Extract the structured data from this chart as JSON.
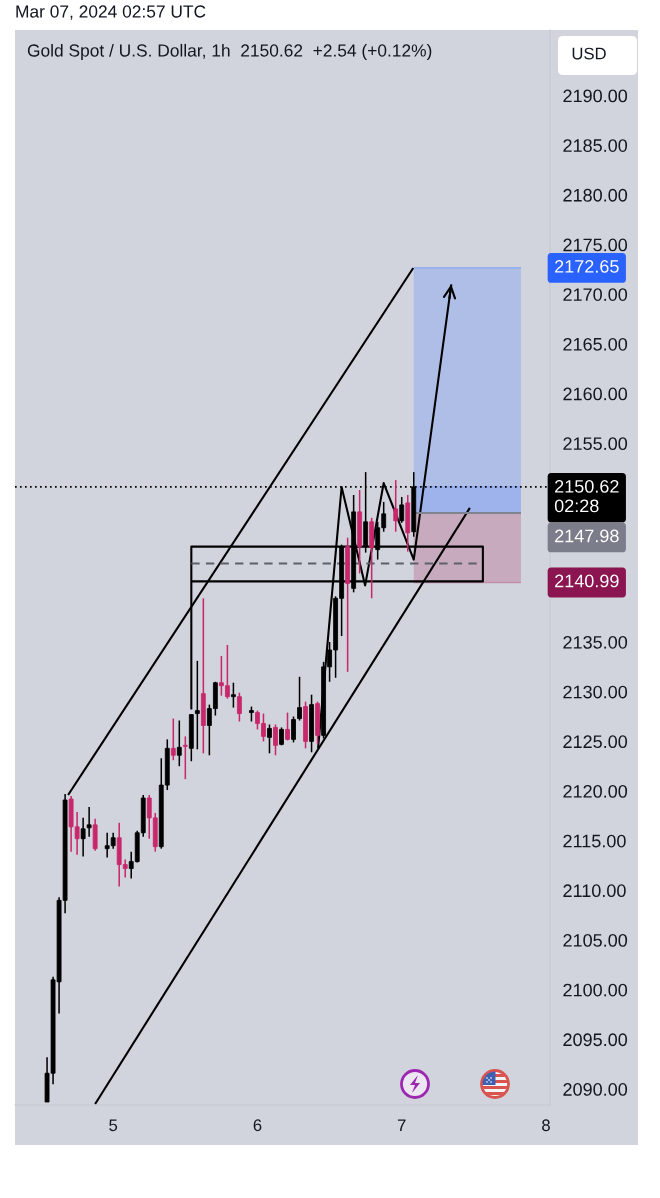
{
  "chart_data": {
    "type": "candlestick",
    "title": "Gold Spot / U.S. Dollar, 1h  2150.62  +2.54 (+0.12%)",
    "annotations": [
      "Mar 07, 2024 02:57 UTC",
      "USD"
    ],
    "x": [
      "2024-03-04T13:00",
      "2024-03-04T14:00",
      "2024-03-04T15:00",
      "2024-03-04T16:00",
      "2024-03-04T17:00",
      "2024-03-04T18:00",
      "2024-03-04T19:00",
      "2024-03-04T20:00",
      "2024-03-04T21:00",
      "2024-03-04T23:00",
      "2024-03-05T00:00",
      "2024-03-05T01:00",
      "2024-03-05T02:00",
      "2024-03-05T03:00",
      "2024-03-05T04:00",
      "2024-03-05T05:00",
      "2024-03-05T06:00",
      "2024-03-05T07:00",
      "2024-03-05T08:00",
      "2024-03-05T09:00",
      "2024-03-05T10:00",
      "2024-03-05T11:00",
      "2024-03-05T12:00",
      "2024-03-05T13:00",
      "2024-03-05T14:00",
      "2024-03-05T15:00",
      "2024-03-05T16:00",
      "2024-03-05T17:00",
      "2024-03-05T18:00",
      "2024-03-05T19:00",
      "2024-03-05T20:00",
      "2024-03-05T21:00",
      "2024-03-05T23:00",
      "2024-03-06T00:00",
      "2024-03-06T01:00",
      "2024-03-06T02:00",
      "2024-03-06T03:00",
      "2024-03-06T04:00",
      "2024-03-06T05:00",
      "2024-03-06T06:00",
      "2024-03-06T07:00",
      "2024-03-06T08:00",
      "2024-03-06T09:00",
      "2024-03-06T10:00",
      "2024-03-06T11:00",
      "2024-03-06T12:00",
      "2024-03-06T13:00",
      "2024-03-06T14:00",
      "2024-03-06T15:00",
      "2024-03-06T16:00",
      "2024-03-06T17:00",
      "2024-03-06T18:00",
      "2024-03-06T19:00",
      "2024-03-06T20:00",
      "2024-03-06T21:00",
      "2024-03-06T23:00",
      "2024-03-07T00:00",
      "2024-03-07T01:00",
      "2024-03-07T02:00"
    ],
    "ohlc": [
      [
        2088.7,
        2093.2,
        2088.7,
        2091.6
      ],
      [
        2091.6,
        2101.3,
        2090.5,
        2101.0
      ],
      [
        2100.8,
        2109.3,
        2097.6,
        2109.0
      ],
      [
        2109.0,
        2119.7,
        2107.7,
        2119.1
      ],
      [
        2119.2,
        2119.5,
        2113.9,
        2116.4
      ],
      [
        2116.4,
        2117.9,
        2113.6,
        2115.2
      ],
      [
        2115.2,
        2117.3,
        2113.4,
        2116.2
      ],
      [
        2116.3,
        2118.4,
        2115.4,
        2116.6
      ],
      [
        2116.6,
        2117.2,
        2114.0,
        2114.2
      ],
      [
        2114.2,
        2115.8,
        2113.3,
        2114.5
      ],
      [
        2114.5,
        2115.8,
        2114.2,
        2115.3
      ],
      [
        2115.3,
        2116.8,
        2110.4,
        2112.6
      ],
      [
        2112.6,
        2113.1,
        2111.3,
        2112.2
      ],
      [
        2112.2,
        2113.9,
        2111.2,
        2112.9
      ],
      [
        2112.9,
        2116.0,
        2112.8,
        2115.8
      ],
      [
        2115.8,
        2119.6,
        2115.4,
        2119.3
      ],
      [
        2119.3,
        2119.6,
        2115.2,
        2117.3
      ],
      [
        2117.3,
        2117.8,
        2113.9,
        2114.4
      ],
      [
        2114.4,
        2123.3,
        2114.2,
        2120.6
      ],
      [
        2120.6,
        2125.2,
        2120.1,
        2124.3
      ],
      [
        2124.3,
        2127.3,
        2123.1,
        2123.6
      ],
      [
        2123.6,
        2127.1,
        2122.5,
        2124.4
      ],
      [
        2124.6,
        2125.5,
        2121.2,
        2124.5
      ],
      [
        2124.3,
        2127.7,
        2123.0,
        2127.7
      ],
      [
        2127.8,
        2133.1,
        2124.2,
        2128.1
      ],
      [
        2129.8,
        2139.4,
        2123.8,
        2126.6
      ],
      [
        2126.6,
        2128.7,
        2123.6,
        2128.3
      ],
      [
        2128.3,
        2131.0,
        2127.6,
        2130.9
      ],
      [
        2130.9,
        2133.6,
        2129.6,
        2130.6
      ],
      [
        2130.6,
        2134.7,
        2129.3,
        2129.5
      ],
      [
        2129.5,
        2130.9,
        2128.4,
        2129.7
      ],
      [
        2129.5,
        2129.9,
        2127.0,
        2127.8
      ],
      [
        2127.9,
        2128.5,
        2127.0,
        2128.1
      ],
      [
        2127.9,
        2128.1,
        2126.2,
        2126.8
      ],
      [
        2126.8,
        2127.8,
        2125.0,
        2125.5
      ],
      [
        2125.4,
        2126.7,
        2123.8,
        2126.3
      ],
      [
        2126.4,
        2126.7,
        2123.6,
        2124.6
      ],
      [
        2124.7,
        2126.4,
        2124.6,
        2126.2
      ],
      [
        2126.2,
        2127.9,
        2125.1,
        2125.2
      ],
      [
        2125.2,
        2127.5,
        2124.9,
        2127.2
      ],
      [
        2127.3,
        2131.5,
        2127.1,
        2128.4
      ],
      [
        2128.5,
        2129.0,
        2124.3,
        2125.0
      ],
      [
        2125.0,
        2129.7,
        2123.9,
        2128.7
      ],
      [
        2128.8,
        2129.0,
        2124.7,
        2125.6
      ],
      [
        2125.6,
        2133.0,
        2125.3,
        2132.5
      ],
      [
        2132.5,
        2135.0,
        2131.0,
        2134.2
      ],
      [
        2134.2,
        2139.6,
        2131.4,
        2139.4
      ],
      [
        2139.4,
        2144.8,
        2135.6,
        2144.6
      ],
      [
        2144.6,
        2145.5,
        2132.0,
        2140.9
      ],
      [
        2140.4,
        2149.8,
        2140.0,
        2148.1
      ],
      [
        2148.1,
        2150.3,
        2141.9,
        2144.6
      ],
      [
        2144.6,
        2152.1,
        2144.0,
        2147.1
      ],
      [
        2147.1,
        2147.5,
        2139.4,
        2144.5
      ],
      [
        2144.3,
        2147.1,
        2143.3,
        2146.5
      ],
      [
        2146.5,
        2149.1,
        2146.1,
        2147.9
      ],
      [
        2148.4,
        2151.3,
        2146.1,
        2147.2
      ],
      [
        2147.2,
        2149.6,
        2147.0,
        2148.8
      ],
      [
        2149.0,
        2149.8,
        2144.1,
        2146.0
      ],
      [
        2146.1,
        2152.1,
        2145.6,
        2150.62
      ]
    ],
    "colors": [
      "#000000",
      "#000000",
      "#000000",
      "#000000",
      "#c8286b",
      "#c8286b",
      "#000000",
      "#000000",
      "#c8286b",
      "#000000",
      "#000000",
      "#c8286b",
      "#c8286b",
      "#000000",
      "#000000",
      "#000000",
      "#c8286b",
      "#c8286b",
      "#000000",
      "#000000",
      "#c8286b",
      "#000000",
      "#c8286b",
      "#000000",
      "#000000",
      "#c8286b",
      "#000000",
      "#000000",
      "#c8286b",
      "#c8286b",
      "#000000",
      "#c8286b",
      "#000000",
      "#c8286b",
      "#c8286b",
      "#000000",
      "#c8286b",
      "#000000",
      "#c8286b",
      "#000000",
      "#000000",
      "#c8286b",
      "#000000",
      "#c8286b",
      "#000000",
      "#000000",
      "#000000",
      "#000000",
      "#c8286b",
      "#000000",
      "#c8286b",
      "#000000",
      "#c8286b",
      "#000000",
      "#000000",
      "#c8286b",
      "#000000",
      "#c8286b",
      "#000000"
    ],
    "series": [
      {
        "type": "line",
        "color": "#000000",
        "x": [
          "2024-03-04T16:30",
          "2024-03-07T01:55"
        ],
        "values": [
          2119.6,
          2172.65
        ]
      },
      {
        "type": "line",
        "color": "#000000",
        "x": [
          "2024-03-04T21:00",
          "2024-03-07T11:20"
        ],
        "values": [
          2088.5,
          2148.5
        ]
      },
      {
        "type": "line",
        "color": "#000000",
        "x": [
          "2024-03-05T13:00",
          "2024-03-05T13:00",
          "2024-03-07T13:30",
          "2024-03-07T13:30",
          "2024-03-05T13:00"
        ],
        "values": [
          2128.2,
          2144.6,
          2144.6,
          2141.1,
          2141.1
        ]
      },
      {
        "type": "line",
        "color": "#000000",
        "x": [
          "2024-03-06T10:05",
          "2024-03-06T14:00",
          "2024-03-06T17:55",
          "2024-03-06T21:00",
          "2024-03-07T02:00",
          "2024-03-07T08:15"
        ],
        "values": [
          2124.3,
          2150.6,
          2140.7,
          2151.0,
          2143.3,
          2171.0
        ]
      },
      {
        "type": "line",
        "color": "#5d606b",
        "line_style": "dashed",
        "x": [
          "2024-03-05T13:00",
          "2024-03-07T13:30"
        ],
        "values": [
          2142.9,
          2142.9
        ]
      },
      {
        "type": "line",
        "color": "#97afed",
        "x": [
          "2024-03-07T02:00",
          "2024-03-07T19:50"
        ],
        "values": [
          2172.65,
          2172.65
        ],
        "lower": [
          2147.98,
          2147.98
        ],
        "upper": [
          2172.65,
          2172.65
        ],
        "value_labels": [
          null,
          "2172.65"
        ]
      },
      {
        "type": "line",
        "color": "#92aaf0",
        "x": [
          "2024-03-07T02:00",
          "2024-03-07T19:50"
        ],
        "values": [
          2150.62,
          2150.62
        ],
        "lower": [
          2147.98,
          2147.98
        ],
        "upper": [
          2150.62,
          2150.62
        ]
      },
      {
        "type": "line",
        "color": "#c28eaa",
        "x": [
          "2024-03-07T02:00",
          "2024-03-07T19:50"
        ],
        "values": [
          2140.99,
          2140.99
        ],
        "lower": [
          2140.99,
          2140.99
        ],
        "upper": [
          2147.98,
          2147.98
        ],
        "value_labels": [
          null,
          "2140.99"
        ]
      },
      {
        "type": "line",
        "color": "#7f838f",
        "x": [
          "2024-03-07T02:00",
          "2024-03-07T19:50"
        ],
        "values": [
          2147.98,
          2147.98
        ],
        "value_labels": [
          null,
          "2147.98"
        ]
      }
    ],
    "ref_lines": [
      {
        "axis": "y",
        "value": 2150.62,
        "label": "2150.62\n02:28",
        "line_style": "dotted",
        "color": "#000000"
      }
    ],
    "xlim": [
      "2024-03-04T07:40",
      "2024-03-08T00:40"
    ],
    "xticks": [
      {
        "value": "2024-03-05",
        "label": "5"
      },
      {
        "value": "2024-03-06",
        "label": "6"
      },
      {
        "value": "2024-03-07",
        "label": "7"
      },
      {
        "value": "2024-03-08",
        "label": "8"
      }
    ],
    "ylim": [
      2088.4,
      2196.6
    ],
    "yticks": [
      {
        "value": 2090,
        "label": "2090.00"
      },
      {
        "value": 2095,
        "label": "2095.00"
      },
      {
        "value": 2100,
        "label": "2100.00"
      },
      {
        "value": 2105,
        "label": "2105.00"
      },
      {
        "value": 2110,
        "label": "2110.00"
      },
      {
        "value": 2115,
        "label": "2115.00"
      },
      {
        "value": 2120,
        "label": "2120.00"
      },
      {
        "value": 2125,
        "label": "2125.00"
      },
      {
        "value": 2130,
        "label": "2130.00"
      },
      {
        "value": 2135,
        "label": "2135.00"
      },
      {
        "value": 2155,
        "label": "2155.00"
      },
      {
        "value": 2160,
        "label": "2160.00"
      },
      {
        "value": 2165,
        "label": "2165.00"
      },
      {
        "value": 2170,
        "label": "2170.00"
      },
      {
        "value": 2175,
        "label": "2175.00"
      },
      {
        "value": 2180,
        "label": "2180.00"
      },
      {
        "value": 2185,
        "label": "2185.00"
      },
      {
        "value": 2190,
        "label": "2190.00"
      }
    ]
  }
}
